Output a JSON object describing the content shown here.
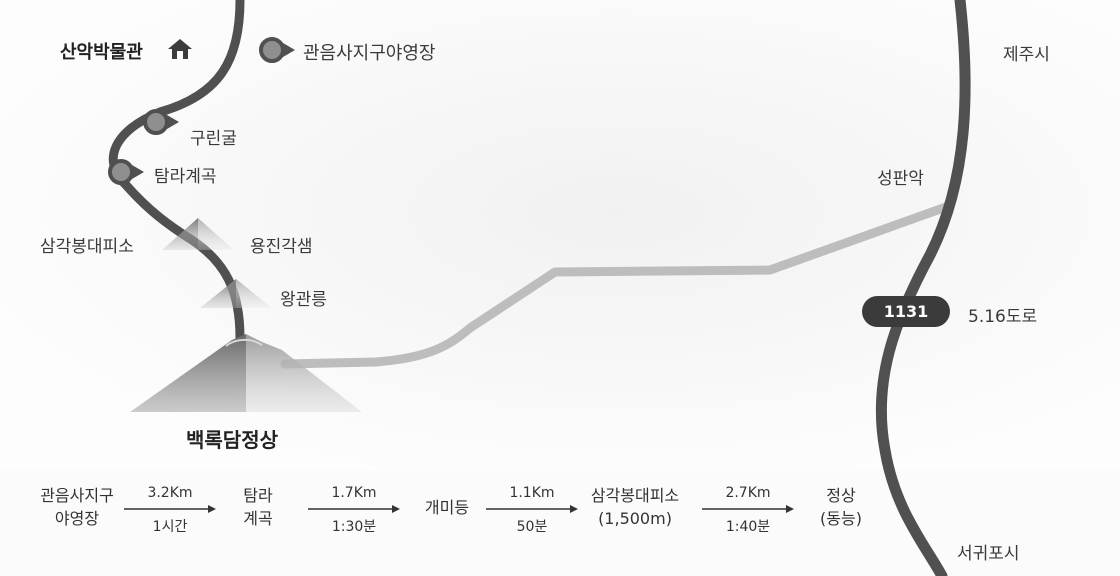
{
  "map": {
    "museum_label": "산악박물관",
    "museum_icon": "house-icon",
    "campground_label": "관음사지구야영장",
    "points": [
      {
        "name": "구린굴"
      },
      {
        "name": "탐라계곡"
      },
      {
        "name": "삼각봉대피소"
      },
      {
        "name": "용진각샘"
      },
      {
        "name": "왕관릉"
      }
    ],
    "summit_label": "백록담정상",
    "seongpanak_label": "성판악",
    "jeju_label": "제주시",
    "seogwipo_label": "서귀포시",
    "road_number": "1131",
    "road_name": "5.16도로"
  },
  "route": {
    "stops": [
      {
        "line1": "관음사지구",
        "line2": "야영장"
      },
      {
        "line1": "탐라",
        "line2": "계곡"
      },
      {
        "line1": "개미등",
        "line2": ""
      },
      {
        "line1": "삼각봉대피소",
        "line2": "(1,500m)"
      },
      {
        "line1": "정상",
        "line2": "(동능)"
      }
    ],
    "segments": [
      {
        "distance": "3.2Km",
        "time": "1시간"
      },
      {
        "distance": "1.7Km",
        "time": "1:30분"
      },
      {
        "distance": "1.1Km",
        "time": "50분"
      },
      {
        "distance": "2.7Km",
        "time": "1:40분"
      }
    ]
  },
  "colors": {
    "trail": "#505050",
    "road": "#505050",
    "side_trail": "#bdbdbd",
    "marker_fill": "#8f8f8f",
    "badge": "#3b3b3b"
  }
}
